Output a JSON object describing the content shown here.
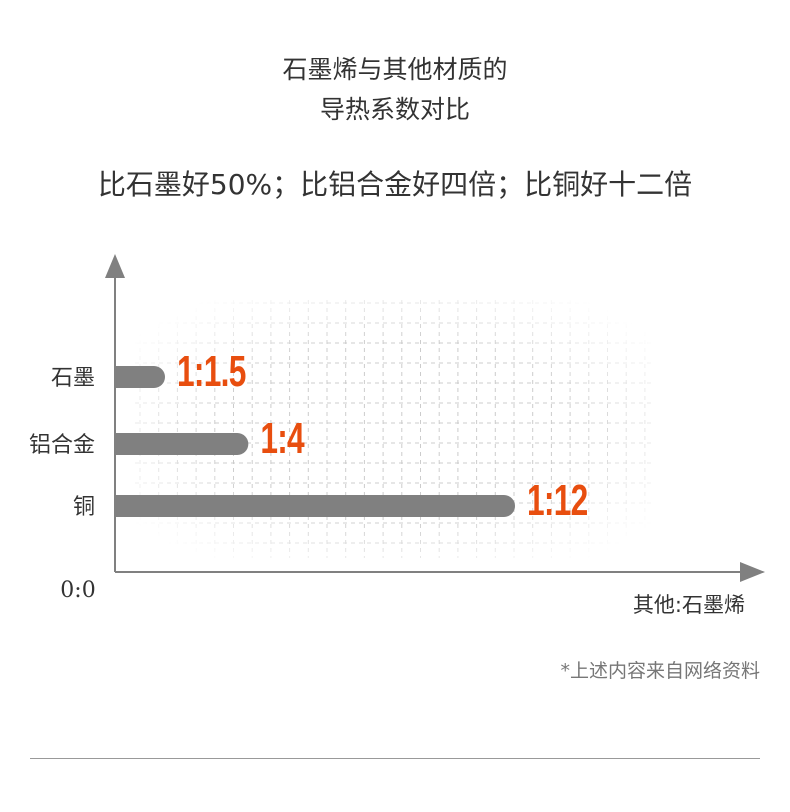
{
  "title_lines": [
    "石墨烯与其他材质的",
    "导热系数对比"
  ],
  "subtitle": "比石墨好50%；比铝合金好四倍；比铜好十二倍",
  "note": "*上述内容来自网络资料",
  "chart_data": {
    "type": "bar",
    "orientation": "horizontal",
    "categories": [
      "石墨",
      "铝合金",
      "铜"
    ],
    "values": [
      1.5,
      4,
      12
    ],
    "data_labels": [
      "1:1.5",
      "1:4",
      "1:12"
    ],
    "origin_label": "0:0",
    "xlabel": "其他:石墨烯",
    "grid": true,
    "colors": {
      "bar": "#808080",
      "label": "#e84e0f",
      "axis": "#808080",
      "grid": "#cccccc"
    }
  }
}
